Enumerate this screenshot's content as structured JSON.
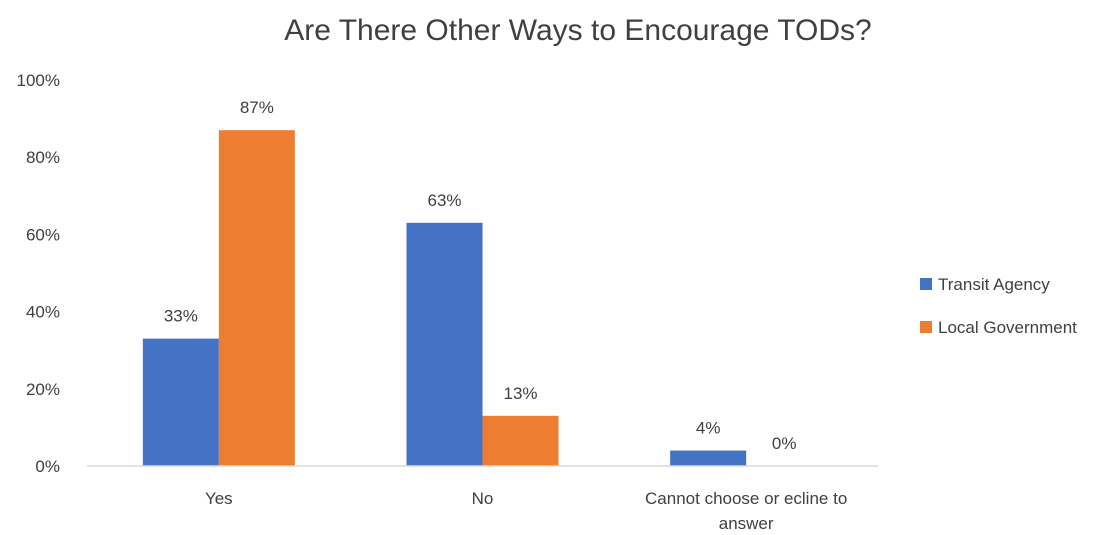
{
  "chart_data": {
    "type": "bar",
    "title": "Are There Other Ways to Encourage TODs?",
    "xlabel": "",
    "ylabel": "",
    "categories": [
      [
        "Yes"
      ],
      [
        "No"
      ],
      [
        "Cannot choose or ecline to",
        "answer"
      ]
    ],
    "series": [
      {
        "name": "Transit Agency",
        "color": "#4472C4",
        "values": [
          33,
          63,
          4
        ],
        "labels": [
          "33%",
          "63%",
          "4%"
        ]
      },
      {
        "name": "Local Government",
        "color": "#ED7D31",
        "values": [
          87,
          13,
          0
        ],
        "labels": [
          "87%",
          "13%",
          "0%"
        ]
      }
    ],
    "ylim": [
      0,
      100
    ],
    "yticks": [
      0,
      20,
      40,
      60,
      80,
      100
    ],
    "ytick_labels": [
      "0%",
      "20%",
      "40%",
      "60%",
      "80%",
      "100%"
    ],
    "grid": false,
    "legend_position": "right"
  }
}
